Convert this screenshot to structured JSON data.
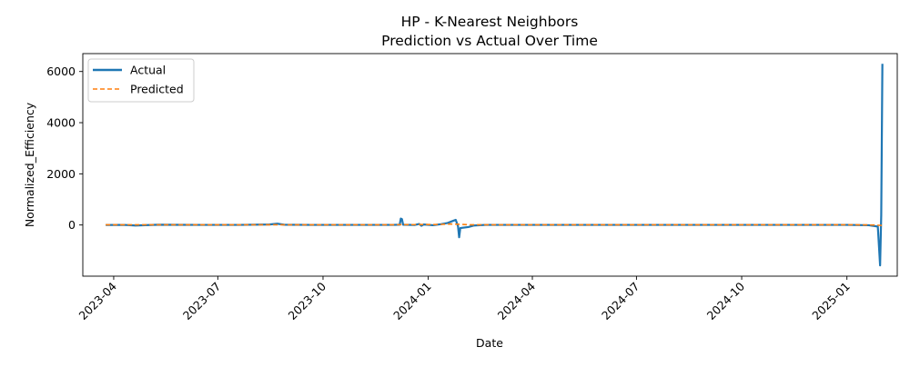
{
  "chart_data": {
    "type": "line",
    "title": "HP - K-Nearest Neighbors",
    "subtitle": "Prediction vs Actual Over Time",
    "xlabel": "Date",
    "ylabel": "Normalized_Efficiency",
    "xlim": [
      "2023-03-05",
      "2025-02-14"
    ],
    "ylim": [
      -2000,
      6700
    ],
    "x_ticks": [
      "2023-04",
      "2023-07",
      "2023-10",
      "2024-01",
      "2024-04",
      "2024-07",
      "2024-10",
      "2025-01"
    ],
    "x_tick_dates": [
      "2023-04-01",
      "2023-07-01",
      "2023-10-01",
      "2024-01-01",
      "2024-04-01",
      "2024-07-01",
      "2024-10-01",
      "2025-01-01"
    ],
    "y_ticks": [
      0,
      2000,
      4000,
      6000
    ],
    "grid": false,
    "legend": "top-left",
    "series": [
      {
        "name": "Actual",
        "color": "#1f77b4",
        "style": "solid",
        "points": [
          [
            "2023-03-25",
            0
          ],
          [
            "2023-04-10",
            5
          ],
          [
            "2023-04-20",
            -20
          ],
          [
            "2023-05-10",
            10
          ],
          [
            "2023-06-15",
            5
          ],
          [
            "2023-07-20",
            5
          ],
          [
            "2023-08-15",
            20
          ],
          [
            "2023-08-22",
            50
          ],
          [
            "2023-08-28",
            10
          ],
          [
            "2023-09-20",
            5
          ],
          [
            "2023-11-10",
            5
          ],
          [
            "2023-12-01",
            5
          ],
          [
            "2023-12-07",
            10
          ],
          [
            "2023-12-08",
            250
          ],
          [
            "2023-12-09",
            230
          ],
          [
            "2023-12-10",
            10
          ],
          [
            "2023-12-20",
            0
          ],
          [
            "2023-12-24",
            40
          ],
          [
            "2023-12-26",
            -30
          ],
          [
            "2023-12-28",
            20
          ],
          [
            "2024-01-05",
            -10
          ],
          [
            "2024-01-12",
            30
          ],
          [
            "2024-01-18",
            80
          ],
          [
            "2024-01-22",
            150
          ],
          [
            "2024-01-25",
            200
          ],
          [
            "2024-01-27",
            -50
          ],
          [
            "2024-01-28",
            -480
          ],
          [
            "2024-01-29",
            -120
          ],
          [
            "2024-02-05",
            -80
          ],
          [
            "2024-02-10",
            -20
          ],
          [
            "2024-02-20",
            5
          ],
          [
            "2024-04-01",
            5
          ],
          [
            "2024-07-01",
            5
          ],
          [
            "2024-10-01",
            5
          ],
          [
            "2025-01-01",
            5
          ],
          [
            "2025-01-20",
            -10
          ],
          [
            "2025-01-28",
            -60
          ],
          [
            "2025-01-30",
            -1580
          ],
          [
            "2025-01-31",
            400
          ],
          [
            "2025-02-01",
            6300
          ]
        ]
      },
      {
        "name": "Predicted",
        "color": "#ff7f0e",
        "style": "dashed",
        "points": [
          [
            "2023-03-25",
            10
          ],
          [
            "2023-06-01",
            10
          ],
          [
            "2023-09-01",
            10
          ],
          [
            "2023-12-01",
            10
          ],
          [
            "2024-01-10",
            20
          ],
          [
            "2024-01-20",
            40
          ],
          [
            "2024-01-26",
            30
          ],
          [
            "2024-02-05",
            10
          ],
          [
            "2024-04-01",
            10
          ],
          [
            "2024-07-01",
            10
          ],
          [
            "2024-10-01",
            10
          ],
          [
            "2025-01-01",
            10
          ],
          [
            "2025-01-25",
            0
          ],
          [
            "2025-02-01",
            -20
          ]
        ]
      }
    ]
  }
}
